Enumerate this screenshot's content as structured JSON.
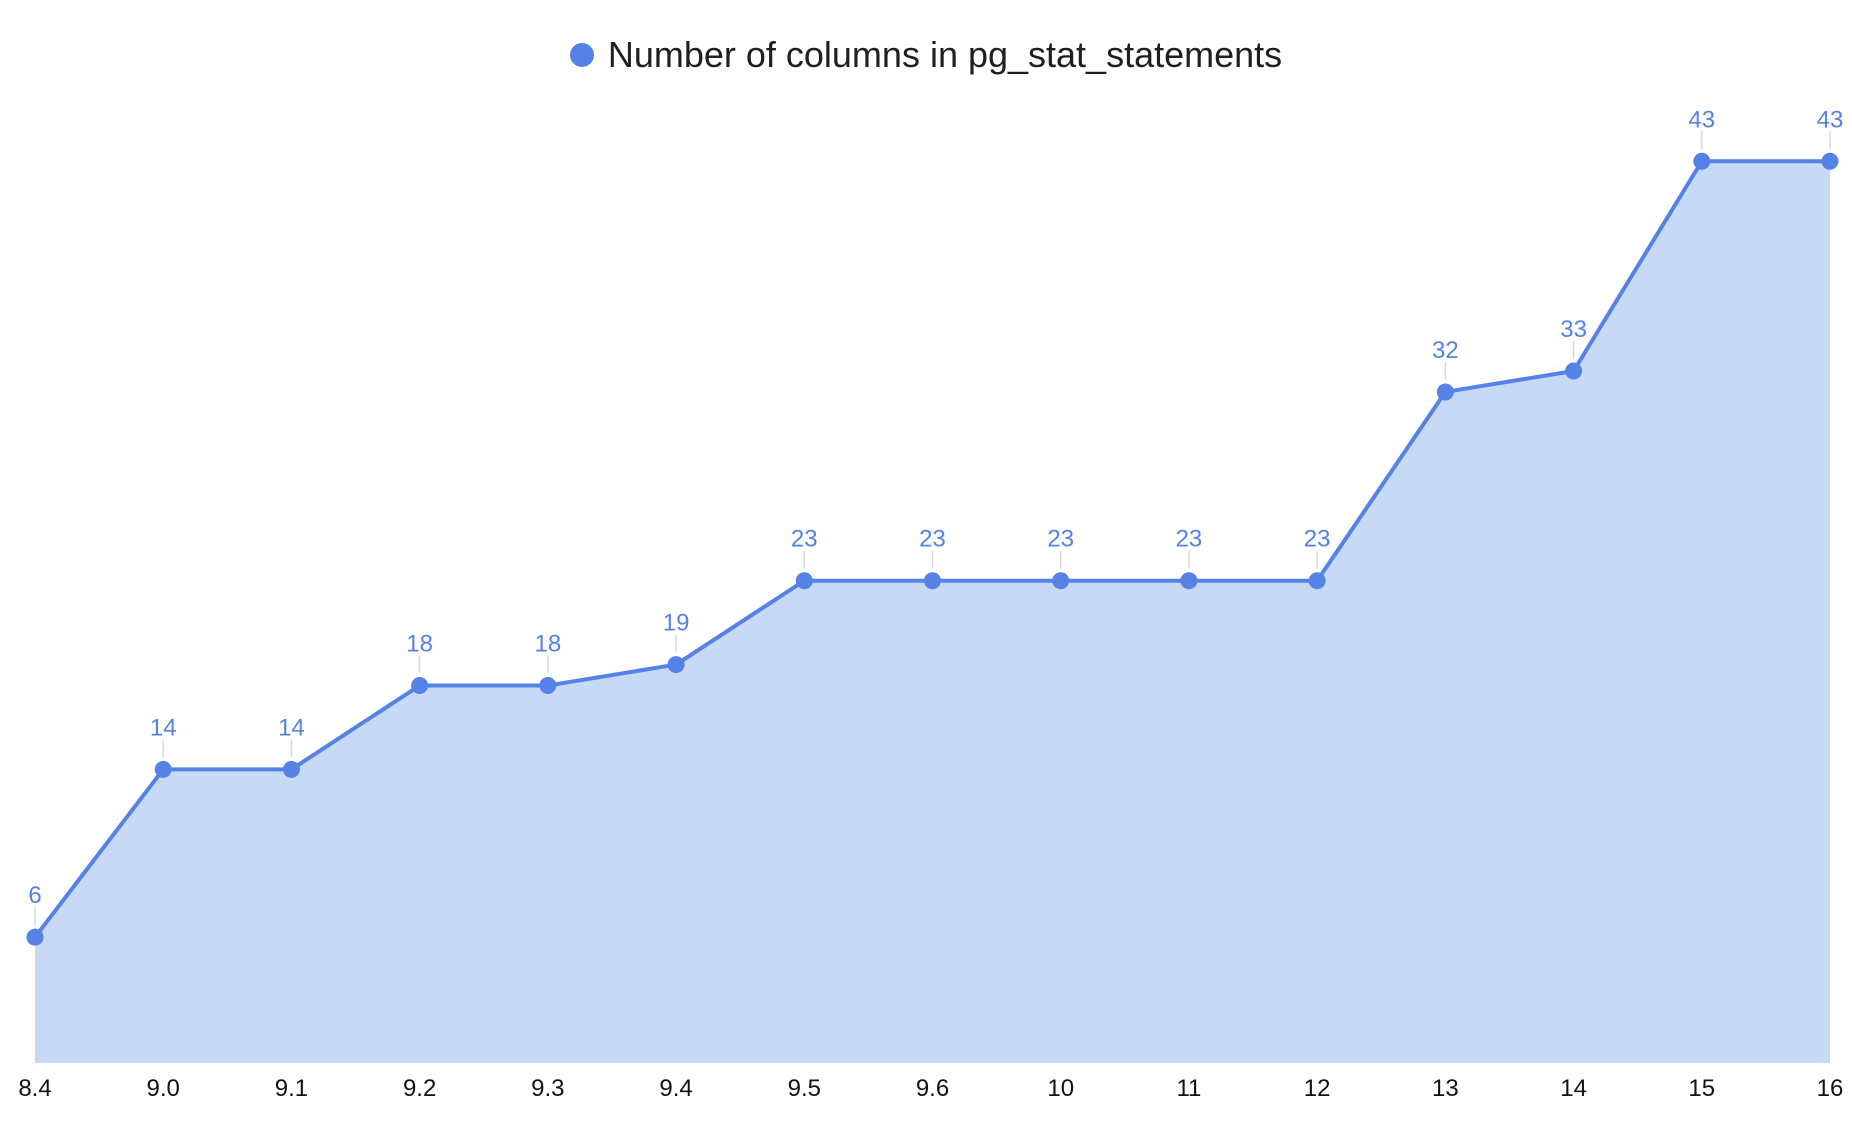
{
  "chart_data": {
    "type": "area",
    "categories": [
      "8.4",
      "9.0",
      "9.1",
      "9.2",
      "9.3",
      "9.4",
      "9.5",
      "9.6",
      "10",
      "11",
      "12",
      "13",
      "14",
      "15",
      "16"
    ],
    "series": [
      {
        "name": "Number of columns in pg_stat_statements",
        "values": [
          6,
          14,
          14,
          18,
          18,
          19,
          23,
          23,
          23,
          23,
          23,
          32,
          33,
          43,
          43
        ]
      }
    ],
    "ylim": [
      0,
      48
    ],
    "data_labels": true,
    "grid": false,
    "legend_position": "top-center",
    "colors": {
      "line": "#5582e6",
      "fill": "#c8d9f6",
      "label": "#5582e6",
      "leader": "#d9d9d9"
    }
  }
}
